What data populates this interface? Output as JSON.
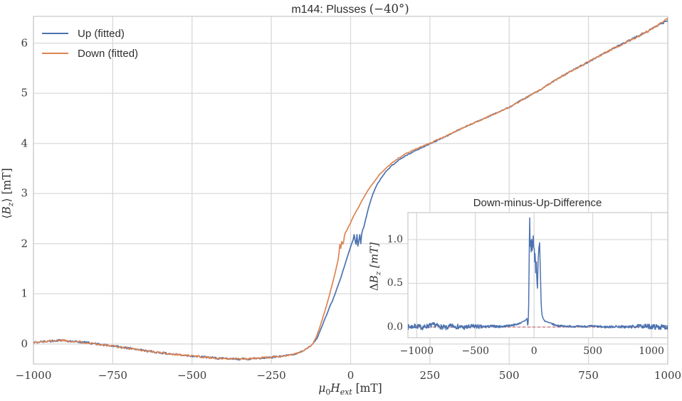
{
  "figure": {
    "title": {
      "prefix": "m144: Plusses ",
      "angle": "(−40°)"
    },
    "legend": [
      {
        "label": "Up (fitted)",
        "color": "#4C72B0"
      },
      {
        "label": "Down (fitted)",
        "color": "#DD8452"
      }
    ],
    "xlabel": {
      "mu": "μ",
      "zero": "0",
      "H": "H",
      "ext": "ext",
      "unit": " [mT]"
    },
    "ylabel": {
      "open": "⟨",
      "B": "B",
      "z": "z",
      "close": "⟩",
      "unit": " [mT]"
    },
    "inset_title": "Down-minus-Up-Difference",
    "inset_ylabel": {
      "delta": "Δ",
      "B": "B",
      "z": "z",
      "unit": " [mT]"
    }
  },
  "chart_data": {
    "type": "line",
    "title": "m144: Plusses (−40°)",
    "xlabel": "mu_0 H_ext [mT]",
    "ylabel": "<B_z> [mT]",
    "xlim": [
      -1000,
      1000
    ],
    "ylim": [
      -0.4,
      6.535
    ],
    "grid": true,
    "legend_position": "upper left",
    "xticks": [
      -1000,
      -750,
      -500,
      -250,
      0,
      250,
      500,
      750,
      1000
    ],
    "xtick_labels": [
      "−1000",
      "−750",
      "−500",
      "−250",
      "0",
      "250",
      "500",
      "750",
      "1000"
    ],
    "yticks": [
      0,
      1,
      2,
      3,
      4,
      5,
      6
    ],
    "ytick_labels": [
      "0",
      "1",
      "2",
      "3",
      "4",
      "5",
      "6"
    ],
    "grid_color": "#d9d9d9",
    "spine_color": "#cccccc",
    "series": [
      {
        "name": "Up (fitted)",
        "color": "#4C72B0",
        "seed": 42,
        "noise_profile": [
          [
            -1000,
            0.022
          ],
          [
            -250,
            0.02
          ],
          [
            -150,
            0.012
          ],
          [
            -100,
            0.005
          ],
          [
            60,
            0.005
          ],
          [
            120,
            0.008
          ],
          [
            250,
            0.01
          ],
          [
            500,
            0.012
          ],
          [
            750,
            0.015
          ],
          [
            900,
            0.02
          ],
          [
            1000,
            0.026
          ]
        ],
        "points": [
          [
            -1000,
            0.03
          ],
          [
            -960,
            0.05
          ],
          [
            -915,
            0.08
          ],
          [
            -870,
            0.05
          ],
          [
            -820,
            0.02
          ],
          [
            -780,
            -0.02
          ],
          [
            -730,
            -0.06
          ],
          [
            -680,
            -0.1
          ],
          [
            -630,
            -0.15
          ],
          [
            -580,
            -0.19
          ],
          [
            -530,
            -0.22
          ],
          [
            -480,
            -0.25
          ],
          [
            -430,
            -0.28
          ],
          [
            -380,
            -0.3
          ],
          [
            -330,
            -0.3
          ],
          [
            -280,
            -0.28
          ],
          [
            -230,
            -0.25
          ],
          [
            -190,
            -0.22
          ],
          [
            -165,
            -0.18
          ],
          [
            -148,
            -0.13
          ],
          [
            -135,
            -0.08
          ],
          [
            -122,
            -0.02
          ],
          [
            -113,
            0.05
          ],
          [
            -105,
            0.12
          ],
          [
            -97,
            0.25
          ],
          [
            -89,
            0.37
          ],
          [
            -81,
            0.5
          ],
          [
            -73,
            0.62
          ],
          [
            -65,
            0.76
          ],
          [
            -57,
            0.86
          ],
          [
            -49,
            1.0
          ],
          [
            -41,
            1.14
          ],
          [
            -33,
            1.28
          ],
          [
            -25,
            1.44
          ],
          [
            -17,
            1.6
          ],
          [
            -9,
            1.76
          ],
          [
            0,
            1.94
          ],
          [
            8,
            2.08
          ],
          [
            12,
            2.22
          ],
          [
            16,
            1.92
          ],
          [
            20,
            2.18
          ],
          [
            24,
            1.88
          ],
          [
            28,
            2.24
          ],
          [
            32,
            2.0
          ],
          [
            36,
            2.26
          ],
          [
            41,
            2.32
          ],
          [
            48,
            2.5
          ],
          [
            56,
            2.7
          ],
          [
            64,
            2.88
          ],
          [
            72,
            3.02
          ],
          [
            82,
            3.16
          ],
          [
            95,
            3.3
          ],
          [
            110,
            3.43
          ],
          [
            130,
            3.56
          ],
          [
            150,
            3.66
          ],
          [
            175,
            3.76
          ],
          [
            200,
            3.84
          ],
          [
            225,
            3.92
          ],
          [
            250,
            3.99
          ],
          [
            300,
            4.14
          ],
          [
            350,
            4.3
          ],
          [
            400,
            4.44
          ],
          [
            450,
            4.58
          ],
          [
            500,
            4.72
          ],
          [
            550,
            4.9
          ],
          [
            600,
            5.08
          ],
          [
            650,
            5.28
          ],
          [
            700,
            5.46
          ],
          [
            750,
            5.63
          ],
          [
            800,
            5.8
          ],
          [
            850,
            5.96
          ],
          [
            900,
            6.12
          ],
          [
            950,
            6.28
          ],
          [
            1000,
            6.47
          ]
        ]
      },
      {
        "name": "Down (fitted)",
        "color": "#DD8452",
        "seed": 1337,
        "noise_profile": [
          [
            -1000,
            0.022
          ],
          [
            -250,
            0.02
          ],
          [
            -150,
            0.012
          ],
          [
            -100,
            0.005
          ],
          [
            60,
            0.005
          ],
          [
            120,
            0.008
          ],
          [
            250,
            0.01
          ],
          [
            500,
            0.012
          ],
          [
            750,
            0.015
          ],
          [
            900,
            0.02
          ],
          [
            1000,
            0.026
          ]
        ],
        "points": [
          [
            -1000,
            0.03
          ],
          [
            -960,
            0.05
          ],
          [
            -915,
            0.08
          ],
          [
            -870,
            0.05
          ],
          [
            -820,
            0.02
          ],
          [
            -780,
            -0.02
          ],
          [
            -730,
            -0.06
          ],
          [
            -680,
            -0.1
          ],
          [
            -630,
            -0.15
          ],
          [
            -580,
            -0.19
          ],
          [
            -530,
            -0.22
          ],
          [
            -480,
            -0.25
          ],
          [
            -430,
            -0.28
          ],
          [
            -380,
            -0.3
          ],
          [
            -330,
            -0.3
          ],
          [
            -280,
            -0.28
          ],
          [
            -230,
            -0.25
          ],
          [
            -190,
            -0.22
          ],
          [
            -165,
            -0.18
          ],
          [
            -148,
            -0.13
          ],
          [
            -135,
            -0.08
          ],
          [
            -122,
            -0.02
          ],
          [
            -115,
            0.05
          ],
          [
            -107,
            0.16
          ],
          [
            -99,
            0.3
          ],
          [
            -91,
            0.46
          ],
          [
            -83,
            0.62
          ],
          [
            -75,
            0.79
          ],
          [
            -67,
            0.97
          ],
          [
            -59,
            1.16
          ],
          [
            -51,
            1.36
          ],
          [
            -44,
            1.55
          ],
          [
            -38,
            1.72
          ],
          [
            -33,
            2.05
          ],
          [
            -30,
            1.84
          ],
          [
            -27,
            2.14
          ],
          [
            -24,
            1.92
          ],
          [
            -21,
            2.1
          ],
          [
            -18,
            2.22
          ],
          [
            -14,
            2.24
          ],
          [
            -8,
            2.32
          ],
          [
            0,
            2.42
          ],
          [
            10,
            2.56
          ],
          [
            20,
            2.67
          ],
          [
            30,
            2.79
          ],
          [
            43,
            2.94
          ],
          [
            55,
            3.07
          ],
          [
            72,
            3.22
          ],
          [
            90,
            3.37
          ],
          [
            110,
            3.5
          ],
          [
            130,
            3.61
          ],
          [
            150,
            3.7
          ],
          [
            175,
            3.8
          ],
          [
            200,
            3.87
          ],
          [
            225,
            3.94
          ],
          [
            250,
            4.0
          ],
          [
            300,
            4.15
          ],
          [
            350,
            4.3
          ],
          [
            400,
            4.44
          ],
          [
            450,
            4.58
          ],
          [
            500,
            4.72
          ],
          [
            550,
            4.9
          ],
          [
            600,
            5.08
          ],
          [
            650,
            5.28
          ],
          [
            700,
            5.46
          ],
          [
            750,
            5.63
          ],
          [
            800,
            5.8
          ],
          [
            850,
            5.96
          ],
          [
            900,
            6.12
          ],
          [
            950,
            6.28
          ],
          [
            1000,
            6.48
          ]
        ]
      }
    ],
    "inset": {
      "type": "line",
      "title": "Down-minus-Up-Difference",
      "ylabel": "ΔB_z [mT]",
      "xlim": [
        -1075,
        1139
      ],
      "ylim": [
        -0.122,
        1.309
      ],
      "xticks": [
        -1000,
        -500,
        0,
        500,
        1000
      ],
      "xtick_labels": [
        "−1000",
        "−500",
        "0",
        "500",
        "1000"
      ],
      "yticks": [
        0,
        0.5,
        1
      ],
      "ytick_labels": [
        "0.0",
        "0.5",
        "1.0"
      ],
      "zero_line": {
        "y": 0,
        "color": "#C44E52",
        "style": "dashed"
      },
      "series": [
        {
          "name": "Down − Up",
          "color": "#4C72B0",
          "seed": 7,
          "noise_profile": [
            [
              -1075,
              0.028
            ],
            [
              -500,
              0.028
            ],
            [
              -400,
              0.016
            ],
            [
              -150,
              0.01
            ],
            [
              -60,
              0.005
            ],
            [
              70,
              0.005
            ],
            [
              150,
              0.01
            ],
            [
              700,
              0.013
            ],
            [
              900,
              0.02
            ],
            [
              1000,
              0.03
            ],
            [
              1139,
              0.028
            ]
          ],
          "points": [
            [
              -1075,
              0.0
            ],
            [
              -1000,
              0.01
            ],
            [
              -950,
              -0.005
            ],
            [
              -900,
              0.015
            ],
            [
              -850,
              0.025
            ],
            [
              -800,
              0.005
            ],
            [
              -750,
              -0.01
            ],
            [
              -700,
              0.015
            ],
            [
              -650,
              0.005
            ],
            [
              -600,
              -0.005
            ],
            [
              -550,
              0.0
            ],
            [
              -500,
              0.01
            ],
            [
              -450,
              0.0
            ],
            [
              -400,
              0.005
            ],
            [
              -350,
              0.01
            ],
            [
              -300,
              0.005
            ],
            [
              -250,
              0.01
            ],
            [
              -200,
              0.02
            ],
            [
              -150,
              0.03
            ],
            [
              -110,
              0.05
            ],
            [
              -80,
              0.07
            ],
            [
              -65,
              0.09
            ],
            [
              -60,
              0.1
            ],
            [
              -56,
              0.02
            ],
            [
              -50,
              0.04
            ],
            [
              -45,
              0.3
            ],
            [
              -41,
              0.9
            ],
            [
              -37,
              1.25
            ],
            [
              -33,
              0.82
            ],
            [
              -29,
              1.03
            ],
            [
              -25,
              0.86
            ],
            [
              -21,
              1.05
            ],
            [
              -16,
              0.88
            ],
            [
              -11,
              0.97
            ],
            [
              -6,
              1.06
            ],
            [
              -3,
              0.85
            ],
            [
              1,
              0.95
            ],
            [
              5,
              0.74
            ],
            [
              9,
              0.88
            ],
            [
              14,
              0.62
            ],
            [
              19,
              0.8
            ],
            [
              24,
              0.52
            ],
            [
              29,
              0.44
            ],
            [
              34,
              0.74
            ],
            [
              40,
              0.9
            ],
            [
              47,
              0.97
            ],
            [
              51,
              0.74
            ],
            [
              55,
              0.56
            ],
            [
              58,
              0.35
            ],
            [
              62,
              0.24
            ],
            [
              66,
              0.16
            ],
            [
              71,
              0.12
            ],
            [
              80,
              0.09
            ],
            [
              92,
              0.07
            ],
            [
              105,
              0.06
            ],
            [
              125,
              0.05
            ],
            [
              145,
              0.04
            ],
            [
              165,
              0.03
            ],
            [
              185,
              0.02
            ],
            [
              210,
              0.015
            ],
            [
              260,
              0.01
            ],
            [
              320,
              0.008
            ],
            [
              400,
              0.006
            ],
            [
              500,
              0.01
            ],
            [
              600,
              0.0
            ],
            [
              700,
              0.006
            ],
            [
              800,
              0.0
            ],
            [
              900,
              0.012
            ],
            [
              1000,
              0.005
            ],
            [
              1070,
              0.0
            ],
            [
              1139,
              0.0
            ]
          ]
        }
      ]
    }
  }
}
